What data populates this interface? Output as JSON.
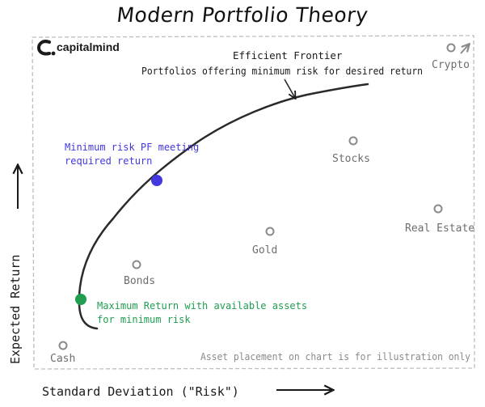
{
  "title": "Modern Portfolio Theory",
  "logo": {
    "icon": "capitalmind-c-icon",
    "text": "capitalmind"
  },
  "axes": {
    "ylabel": "Expected Return",
    "xlabel": "Standard Deviation (\"Risk\")"
  },
  "frontier": {
    "title": "Efficient Frontier",
    "subtitle": "Portfolios offering minimum risk for desired return"
  },
  "assets": [
    {
      "name": "Cash"
    },
    {
      "name": "Bonds"
    },
    {
      "name": "Gold"
    },
    {
      "name": "Stocks"
    },
    {
      "name": "Real Estate"
    },
    {
      "name": "Crypto"
    }
  ],
  "markers": {
    "min_risk": {
      "line1": "Minimum risk PF meeting",
      "line2": "required return",
      "color": "#4338e0"
    },
    "max_return": {
      "line1": "Maximum Return with available assets",
      "line2": "for minimum risk",
      "color": "#1f9e50"
    }
  },
  "disclaimer": "Asset placement on chart is for illustration only",
  "colors": {
    "ink": "#2a2a2a",
    "asset_text": "#6d6d6d",
    "asset_circle": "#8a8a8a",
    "frame": "#bdbdbd"
  }
}
